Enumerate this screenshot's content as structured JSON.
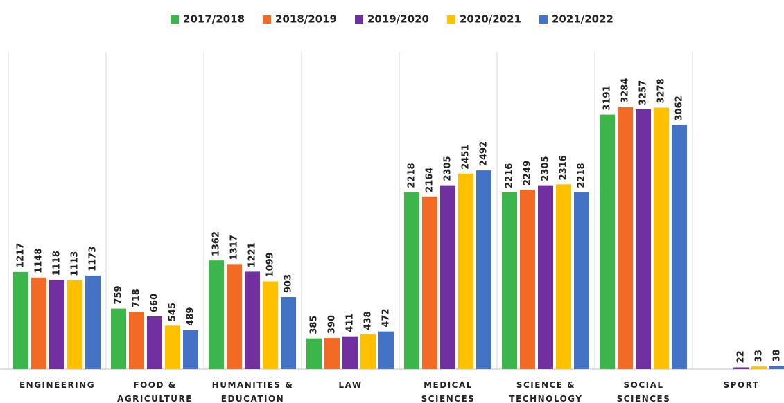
{
  "chart_data": {
    "type": "bar",
    "categories": [
      "ENGINEERING",
      "FOOD & AGRICULTURE",
      "HUMANITIES & EDUCATION",
      "LAW",
      "MEDICAL SCIENCES",
      "SCIENCE & TECHNOLOGY",
      "SOCIAL SCIENCES",
      "SPORT"
    ],
    "series": [
      {
        "name": "2017/2018",
        "color": "#3cb54a",
        "values": [
          1217,
          759,
          1362,
          385,
          2218,
          2216,
          3191,
          null
        ]
      },
      {
        "name": "2018/2019",
        "color": "#f26a24",
        "values": [
          1148,
          718,
          1317,
          390,
          2164,
          2249,
          3284,
          null
        ]
      },
      {
        "name": "2019/2020",
        "color": "#7030a0",
        "values": [
          1118,
          660,
          1221,
          411,
          2305,
          2305,
          3257,
          22
        ]
      },
      {
        "name": "2020/2021",
        "color": "#ffc000",
        "values": [
          1113,
          545,
          1099,
          438,
          2451,
          2316,
          3278,
          33
        ]
      },
      {
        "name": "2021/2022",
        "color": "#4472c4",
        "values": [
          1173,
          489,
          903,
          472,
          2492,
          2218,
          3062,
          38
        ]
      }
    ],
    "ylim": [
      0,
      3500
    ],
    "legend": "top"
  }
}
